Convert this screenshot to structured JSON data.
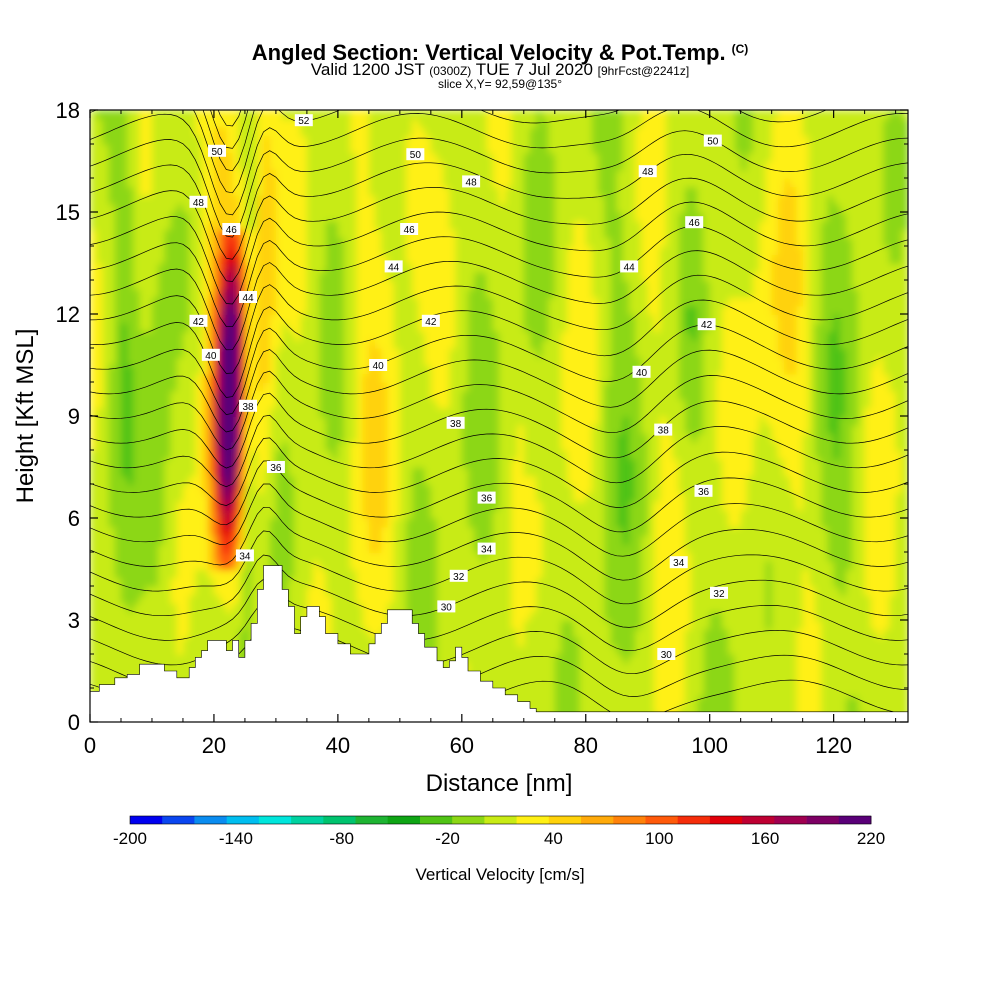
{
  "header": {
    "title": "Angled Section: Vertical Velocity & Pot.Temp.",
    "title_mark": "(C)",
    "valid_prefix": "Valid 1200 JST",
    "valid_utc": "(0300Z)",
    "valid_date": "TUE 7 Jul 2020",
    "forecast": "[9hrFcst@2241z]",
    "slice": "slice X,Y= 92,59@135°"
  },
  "colorbar": {
    "title": "Vertical Velocity [cm/s]",
    "tick_labels": [
      "-200",
      "-140",
      "-80",
      "-20",
      "40",
      "100",
      "160",
      "220"
    ],
    "colors": [
      "#0000f0",
      "#0a46f0",
      "#0a8cf0",
      "#00bef0",
      "#00e6dc",
      "#00d2a0",
      "#00c36e",
      "#1eb432",
      "#0fa514",
      "#50c314",
      "#8cd714",
      "#c8eb14",
      "#fff014",
      "#ffd20a",
      "#ffaa0a",
      "#ff820a",
      "#ff5a0a",
      "#f52d0a",
      "#e1000a",
      "#be0032",
      "#a00050",
      "#7d0064",
      "#5a0078"
    ]
  },
  "chart_data": {
    "type": "heatmap",
    "xlabel": "Distance [nm]",
    "ylabel": "Height [Kft MSL]",
    "xlim": [
      0,
      132
    ],
    "ylim": [
      0,
      18
    ],
    "xticks": [
      0,
      20,
      40,
      60,
      80,
      100,
      120
    ],
    "yticks": [
      0,
      3,
      6,
      9,
      12,
      15,
      18
    ],
    "field": "Vertical Velocity [cm/s]",
    "field_range": [
      -200,
      220
    ],
    "contour_field": "Pot.Temp. (C)",
    "contour_levels": [
      30,
      32,
      34,
      36,
      38,
      40,
      42,
      44,
      46,
      48,
      50,
      52
    ],
    "contour_labels": [
      {
        "text": "52",
        "x": 34.5,
        "y": 17.7
      },
      {
        "text": "50",
        "x": 20.5,
        "y": 16.8
      },
      {
        "text": "50",
        "x": 52.5,
        "y": 16.7
      },
      {
        "text": "50",
        "x": 100.5,
        "y": 17.1
      },
      {
        "text": "48",
        "x": 17.5,
        "y": 15.3
      },
      {
        "text": "48",
        "x": 61.5,
        "y": 15.9
      },
      {
        "text": "48",
        "x": 90.0,
        "y": 16.2
      },
      {
        "text": "46",
        "x": 22.8,
        "y": 14.5
      },
      {
        "text": "46",
        "x": 51.5,
        "y": 14.5
      },
      {
        "text": "46",
        "x": 97.5,
        "y": 14.7
      },
      {
        "text": "44",
        "x": 25.5,
        "y": 12.5
      },
      {
        "text": "44",
        "x": 49.0,
        "y": 13.4
      },
      {
        "text": "44",
        "x": 87.0,
        "y": 13.4
      },
      {
        "text": "42",
        "x": 17.5,
        "y": 11.8
      },
      {
        "text": "42",
        "x": 55.0,
        "y": 11.8
      },
      {
        "text": "42",
        "x": 99.5,
        "y": 11.7
      },
      {
        "text": "40",
        "x": 19.5,
        "y": 10.8
      },
      {
        "text": "40",
        "x": 46.5,
        "y": 10.5
      },
      {
        "text": "40",
        "x": 89.0,
        "y": 10.3
      },
      {
        "text": "38",
        "x": 25.5,
        "y": 9.3
      },
      {
        "text": "38",
        "x": 59.0,
        "y": 8.8
      },
      {
        "text": "38",
        "x": 92.5,
        "y": 8.6
      },
      {
        "text": "36",
        "x": 30.0,
        "y": 7.5
      },
      {
        "text": "36",
        "x": 64.0,
        "y": 6.6
      },
      {
        "text": "36",
        "x": 99.0,
        "y": 6.8
      },
      {
        "text": "34",
        "x": 25.0,
        "y": 4.9
      },
      {
        "text": "34",
        "x": 64.0,
        "y": 5.1
      },
      {
        "text": "34",
        "x": 95.0,
        "y": 4.7
      },
      {
        "text": "32",
        "x": 59.5,
        "y": 4.3
      },
      {
        "text": "32",
        "x": 101.5,
        "y": 3.8
      },
      {
        "text": "30",
        "x": 57.5,
        "y": 3.4
      },
      {
        "text": "30",
        "x": 93.0,
        "y": 2.0
      }
    ],
    "terrain": [
      [
        0,
        0.9
      ],
      [
        1.5,
        0.9
      ],
      [
        1.5,
        1.1
      ],
      [
        4,
        1.1
      ],
      [
        4,
        1.3
      ],
      [
        6,
        1.3
      ],
      [
        6,
        1.4
      ],
      [
        8,
        1.4
      ],
      [
        8,
        1.7
      ],
      [
        12,
        1.7
      ],
      [
        12,
        1.5
      ],
      [
        14,
        1.5
      ],
      [
        14,
        1.3
      ],
      [
        16,
        1.3
      ],
      [
        16,
        1.6
      ],
      [
        17,
        1.6
      ],
      [
        17,
        1.9
      ],
      [
        18,
        1.9
      ],
      [
        18,
        2.1
      ],
      [
        19,
        2.1
      ],
      [
        19,
        2.4
      ],
      [
        22,
        2.4
      ],
      [
        22,
        2.1
      ],
      [
        23,
        2.1
      ],
      [
        23,
        2.4
      ],
      [
        24,
        2.4
      ],
      [
        24,
        1.9
      ],
      [
        25,
        1.9
      ],
      [
        25,
        2.4
      ],
      [
        26,
        2.4
      ],
      [
        26,
        2.9
      ],
      [
        27,
        2.9
      ],
      [
        27,
        3.9
      ],
      [
        28,
        3.9
      ],
      [
        28,
        4.6
      ],
      [
        31,
        4.6
      ],
      [
        31,
        3.9
      ],
      [
        32,
        3.9
      ],
      [
        32,
        3.4
      ],
      [
        33,
        3.4
      ],
      [
        33,
        2.6
      ],
      [
        34,
        2.6
      ],
      [
        34,
        3.1
      ],
      [
        35,
        3.1
      ],
      [
        35,
        3.4
      ],
      [
        37,
        3.4
      ],
      [
        37,
        3.1
      ],
      [
        38,
        3.1
      ],
      [
        38,
        2.6
      ],
      [
        40,
        2.6
      ],
      [
        40,
        2.3
      ],
      [
        42,
        2.3
      ],
      [
        42,
        2.0
      ],
      [
        45,
        2.0
      ],
      [
        45,
        2.3
      ],
      [
        46,
        2.3
      ],
      [
        46,
        2.6
      ],
      [
        47,
        2.6
      ],
      [
        47,
        2.9
      ],
      [
        48,
        2.9
      ],
      [
        48,
        3.3
      ],
      [
        52,
        3.3
      ],
      [
        52,
        2.9
      ],
      [
        53,
        2.9
      ],
      [
        53,
        2.6
      ],
      [
        54,
        2.6
      ],
      [
        54,
        2.2
      ],
      [
        56,
        2.2
      ],
      [
        56,
        1.8
      ],
      [
        57,
        1.8
      ],
      [
        57,
        1.6
      ],
      [
        58,
        1.6
      ],
      [
        58,
        1.8
      ],
      [
        59,
        1.8
      ],
      [
        59,
        2.2
      ],
      [
        60,
        2.2
      ],
      [
        60,
        1.9
      ],
      [
        61,
        1.9
      ],
      [
        61,
        1.5
      ],
      [
        63,
        1.5
      ],
      [
        63,
        1.2
      ],
      [
        65,
        1.2
      ],
      [
        65,
        1.0
      ],
      [
        67,
        1.0
      ],
      [
        67,
        0.8
      ],
      [
        69,
        0.8
      ],
      [
        69,
        0.6
      ],
      [
        71,
        0.6
      ],
      [
        71,
        0.4
      ],
      [
        72,
        0.4
      ],
      [
        72,
        0.3
      ],
      [
        132,
        0.3
      ]
    ]
  }
}
